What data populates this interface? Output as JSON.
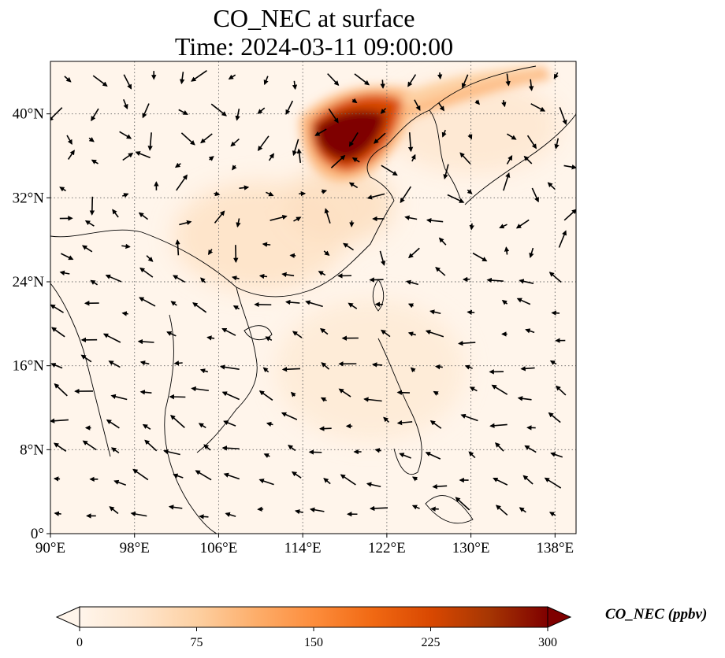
{
  "title": {
    "line1": "CO_NEC at surface",
    "line2": "Time: 2024-03-11 09:00:00"
  },
  "map": {
    "lon_range": [
      90,
      140
    ],
    "lat_range": [
      0,
      45
    ],
    "x_ticks": [
      "90°E",
      "98°E",
      "106°E",
      "114°E",
      "122°E",
      "130°E",
      "138°E"
    ],
    "y_ticks": [
      "0°",
      "8°N",
      "16°N",
      "24°N",
      "32°N",
      "40°N"
    ],
    "grid": "dotted"
  },
  "colorbar": {
    "label": "CO_NEC (ppbv)",
    "ticks": [
      "0",
      "75",
      "150",
      "225",
      "300"
    ],
    "range": [
      0,
      300
    ],
    "colors": [
      "#fff5eb",
      "#fee6ce",
      "#fdd0a2",
      "#fdae6b",
      "#fd8d3c",
      "#f16913",
      "#d94801",
      "#a63603",
      "#7f0000"
    ]
  }
}
